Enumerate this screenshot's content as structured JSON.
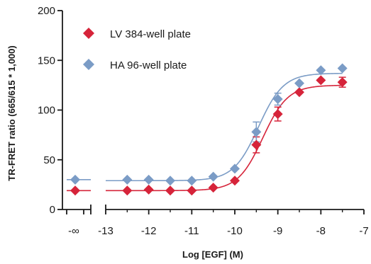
{
  "chart_data": {
    "type": "scatter",
    "title": "",
    "xlabel": "Log [EGF] (M)",
    "ylabel": "TR-FRET ratio (665/615 * 1,000)",
    "xlim": [
      -13,
      -7
    ],
    "ylim": [
      0,
      200
    ],
    "x_ticks": [
      "-∞",
      "-13",
      "-12",
      "-11",
      "-10",
      "-9",
      "-8",
      "-7"
    ],
    "y_ticks": [
      "0",
      "50",
      "100",
      "150",
      "200"
    ],
    "x_axis_break": true,
    "grid": false,
    "legend_position": "top-left",
    "series": [
      {
        "name": "LV 384-well plate",
        "color": "#d6243a",
        "marker": "diamond",
        "baseline_value": 19,
        "x": [
          -12.5,
          -12,
          -11.5,
          -11,
          -10.5,
          -10,
          -9.5,
          -9,
          -8.5,
          -8,
          -7.5
        ],
        "y": [
          19,
          20,
          19,
          19,
          22,
          29,
          65,
          96,
          118,
          130,
          128
        ],
        "error": [
          0,
          0,
          0,
          0,
          0,
          0,
          8,
          7,
          0,
          0,
          5
        ],
        "fit": {
          "bottom": 19,
          "top": 125,
          "log_ec50": -9.35,
          "hill": 1.5
        }
      },
      {
        "name": "HA 96-well plate",
        "color": "#7b9cc6",
        "marker": "diamond",
        "baseline_value": 30,
        "x": [
          -12.5,
          -12,
          -11.5,
          -11,
          -10.5,
          -10,
          -9.5,
          -9,
          -8.5,
          -8,
          -7.5
        ],
        "y": [
          30,
          30,
          29,
          29,
          33,
          41,
          78,
          111,
          127,
          140,
          142
        ],
        "error": [
          0,
          0,
          0,
          0,
          0,
          0,
          10,
          6,
          0,
          0,
          0
        ],
        "fit": {
          "bottom": 29,
          "top": 137,
          "log_ec50": -9.45,
          "hill": 1.5
        }
      }
    ]
  }
}
